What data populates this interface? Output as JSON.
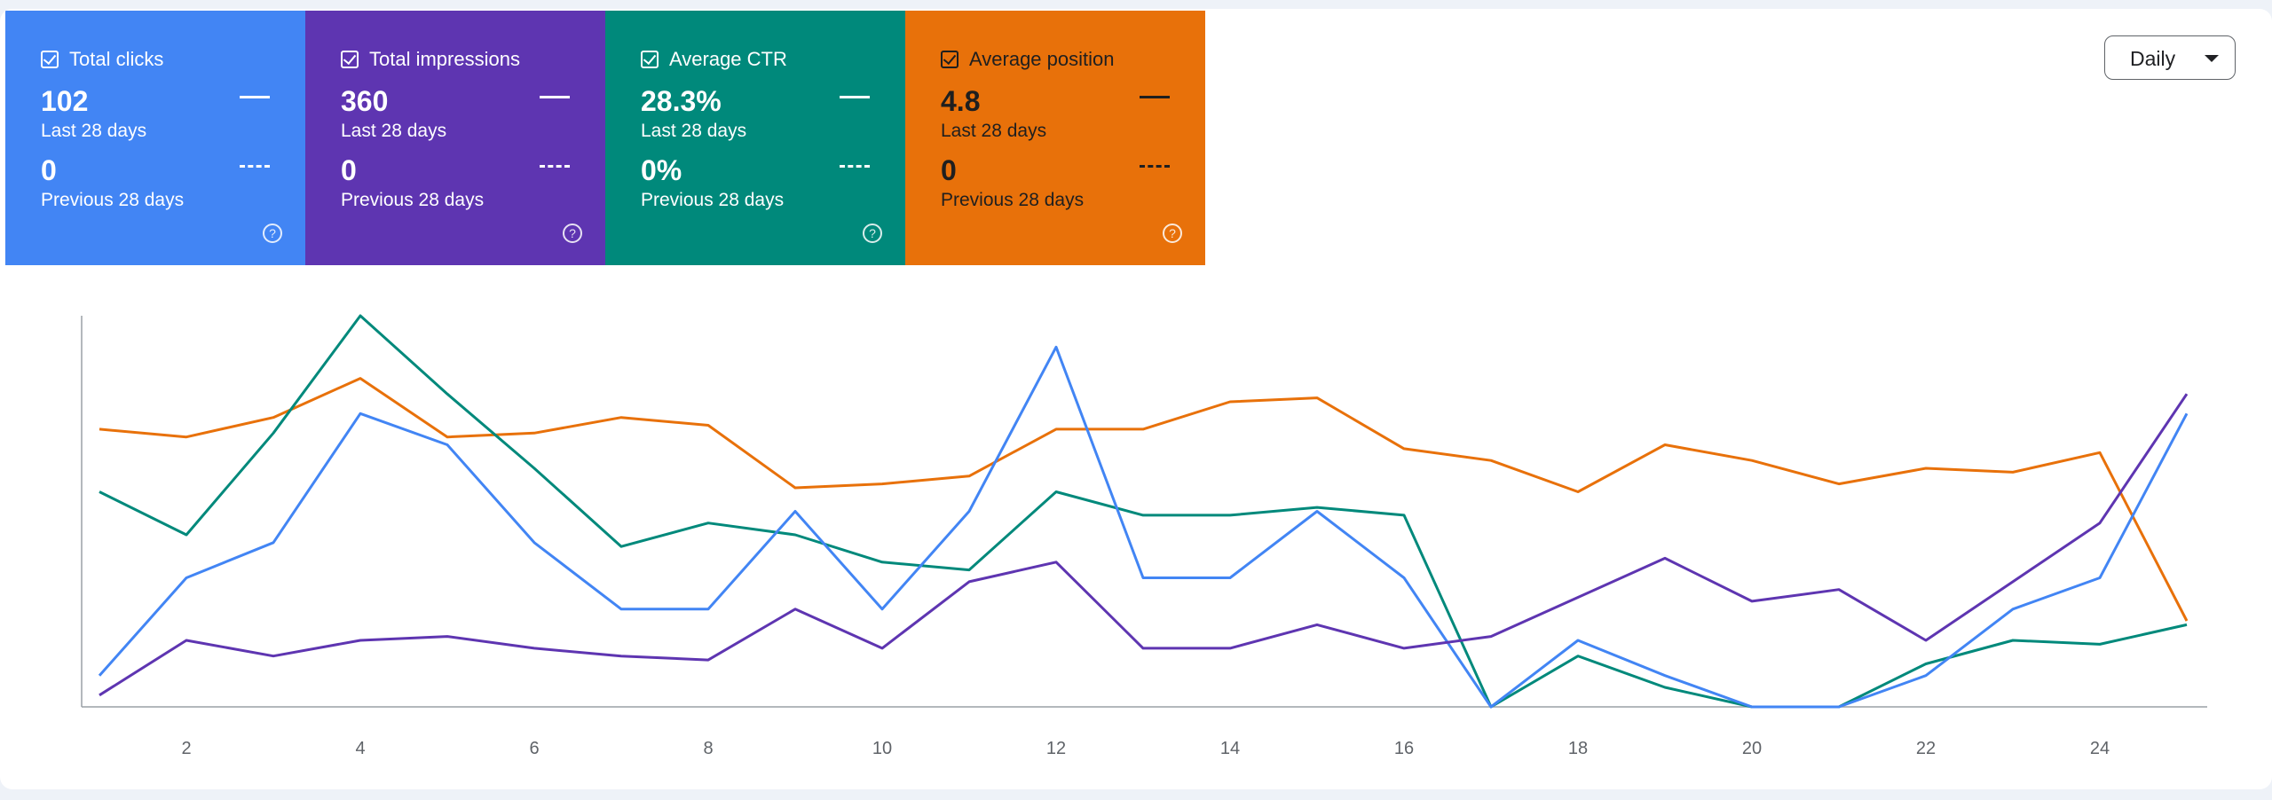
{
  "metrics": [
    {
      "name": "Total clicks",
      "value": "102",
      "period": "Last 28 days",
      "prev_value": "0",
      "prev_period": "Previous 28 days",
      "color": "#4285f4",
      "checked": true
    },
    {
      "name": "Total impressions",
      "value": "360",
      "period": "Last 28 days",
      "prev_value": "0",
      "prev_period": "Previous 28 days",
      "color": "#5e35b1",
      "checked": true
    },
    {
      "name": "Average CTR",
      "value": "28.3%",
      "period": "Last 28 days",
      "prev_value": "0%",
      "prev_period": "Previous 28 days",
      "color": "#00897b",
      "checked": true
    },
    {
      "name": "Average position",
      "value": "4.8",
      "period": "Last 28 days",
      "prev_value": "0",
      "prev_period": "Previous 28 days",
      "color": "#e8710a",
      "checked": true
    }
  ],
  "granularity": {
    "selected": "Daily"
  },
  "icons": {
    "help": "help-circle-icon",
    "checkbox": "checkbox-checked-icon",
    "dropdown": "caret-down-icon"
  },
  "chart_data": {
    "type": "line",
    "x": [
      1,
      2,
      3,
      4,
      5,
      6,
      7,
      8,
      9,
      10,
      11,
      12,
      13,
      14,
      15,
      16,
      17,
      18,
      19,
      20,
      21,
      22,
      23,
      24,
      25
    ],
    "x_ticks": [
      2,
      4,
      6,
      8,
      10,
      12,
      14,
      16,
      18,
      20,
      22,
      24
    ],
    "y_axis_labels": false,
    "grid": false,
    "series": [
      {
        "color": "#e8710a",
        "values": [
          0.71,
          0.69,
          0.74,
          0.84,
          0.69,
          0.7,
          0.74,
          0.72,
          0.56,
          0.57,
          0.59,
          0.71,
          0.71,
          0.78,
          0.79,
          0.66,
          0.63,
          0.55,
          0.67,
          0.63,
          0.57,
          0.61,
          0.6,
          0.65,
          0.22
        ]
      },
      {
        "color": "#00897b",
        "values": [
          0.55,
          0.44,
          0.7,
          1.0,
          0.8,
          0.61,
          0.41,
          0.47,
          0.44,
          0.37,
          0.35,
          0.55,
          0.49,
          0.49,
          0.51,
          0.49,
          0.0,
          0.13,
          0.05,
          0.0,
          0.0,
          0.11,
          0.17,
          0.16,
          0.21
        ]
      },
      {
        "color": "#4285f4",
        "values": [
          0.08,
          0.33,
          0.42,
          0.75,
          0.67,
          0.42,
          0.25,
          0.25,
          0.5,
          0.25,
          0.5,
          0.92,
          0.33,
          0.33,
          0.5,
          0.33,
          0.0,
          0.17,
          0.08,
          0.0,
          0.0,
          0.08,
          0.25,
          0.33,
          0.75
        ]
      },
      {
        "color": "#5e35b1",
        "values": [
          0.03,
          0.17,
          0.13,
          0.17,
          0.18,
          0.15,
          0.13,
          0.12,
          0.25,
          0.15,
          0.32,
          0.37,
          0.15,
          0.15,
          0.21,
          0.15,
          0.18,
          0.28,
          0.38,
          0.27,
          0.3,
          0.17,
          0.32,
          0.47,
          0.8
        ]
      }
    ]
  }
}
